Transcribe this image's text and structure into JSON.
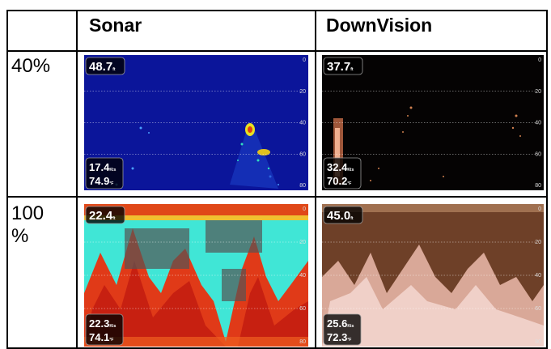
{
  "table": {
    "columns": [
      "Sonar",
      "DownVision"
    ],
    "scale": [
      "0",
      "20",
      "40",
      "60",
      "80"
    ],
    "rows": [
      {
        "label": "40%",
        "panels": [
          {
            "depth": "48.7",
            "depth_unit": "ft",
            "speed": "17.4",
            "speed_unit": "Kts",
            "temp": "74.9",
            "temp_unit": "°F"
          },
          {
            "depth": "37.7",
            "depth_unit": "ft",
            "speed": "32.4",
            "speed_unit": "Kts",
            "temp": "70.2",
            "temp_unit": "°F"
          }
        ]
      },
      {
        "label": "100 %",
        "panels": [
          {
            "depth": "22.4",
            "depth_unit": "ft",
            "speed": "22.3",
            "speed_unit": "Kts",
            "temp": "74.1",
            "temp_unit": "°F"
          },
          {
            "depth": "45.0",
            "depth_unit": "ft",
            "speed": "25.6",
            "speed_unit": "Kts",
            "temp": "72.3",
            "temp_unit": "°F"
          }
        ]
      }
    ]
  }
}
